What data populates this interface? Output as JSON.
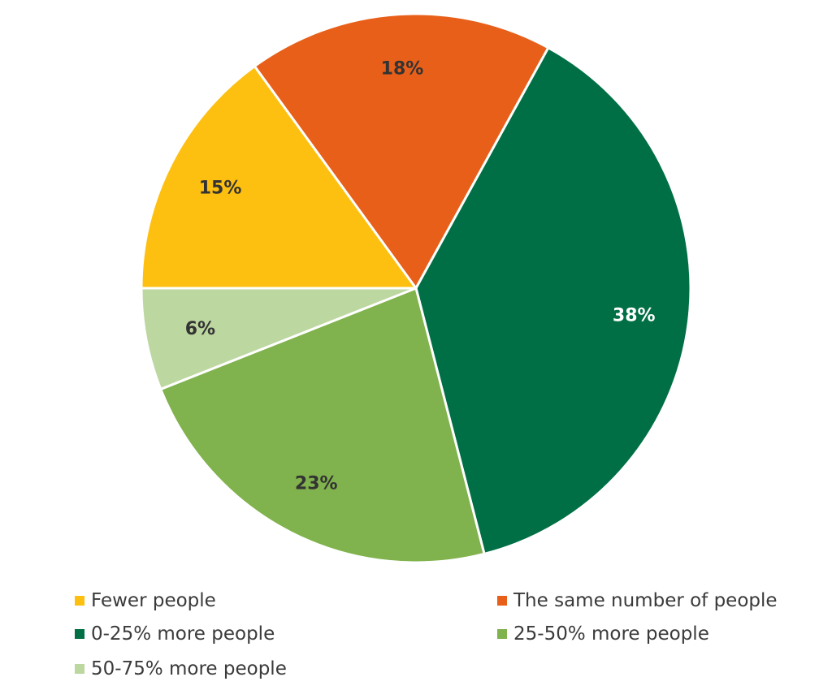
{
  "chart_data": {
    "type": "pie",
    "title": "",
    "start_angle_deg": 180,
    "direction": "clockwise",
    "slices": [
      {
        "name": "Fewer people",
        "value": 15,
        "label": "15%",
        "color": "#FDC010",
        "label_color": "#333333"
      },
      {
        "name": "The same number of people",
        "value": 18,
        "label": "18%",
        "color": "#E85F19",
        "label_color": "#333333"
      },
      {
        "name": "0-25% more people",
        "value": 38,
        "label": "38%",
        "color": "#016F45",
        "label_color": "#ffffff"
      },
      {
        "name": "25-50% more people",
        "value": 23,
        "label": "23%",
        "color": "#80B24D",
        "label_color": "#333333"
      },
      {
        "name": "50-75% more people",
        "value": 6,
        "label": "6%",
        "color": "#BCD7A0",
        "label_color": "#333333"
      }
    ],
    "legend": {
      "position": "bottom",
      "columns": 2
    },
    "slice_border_color": "#ffffff"
  }
}
